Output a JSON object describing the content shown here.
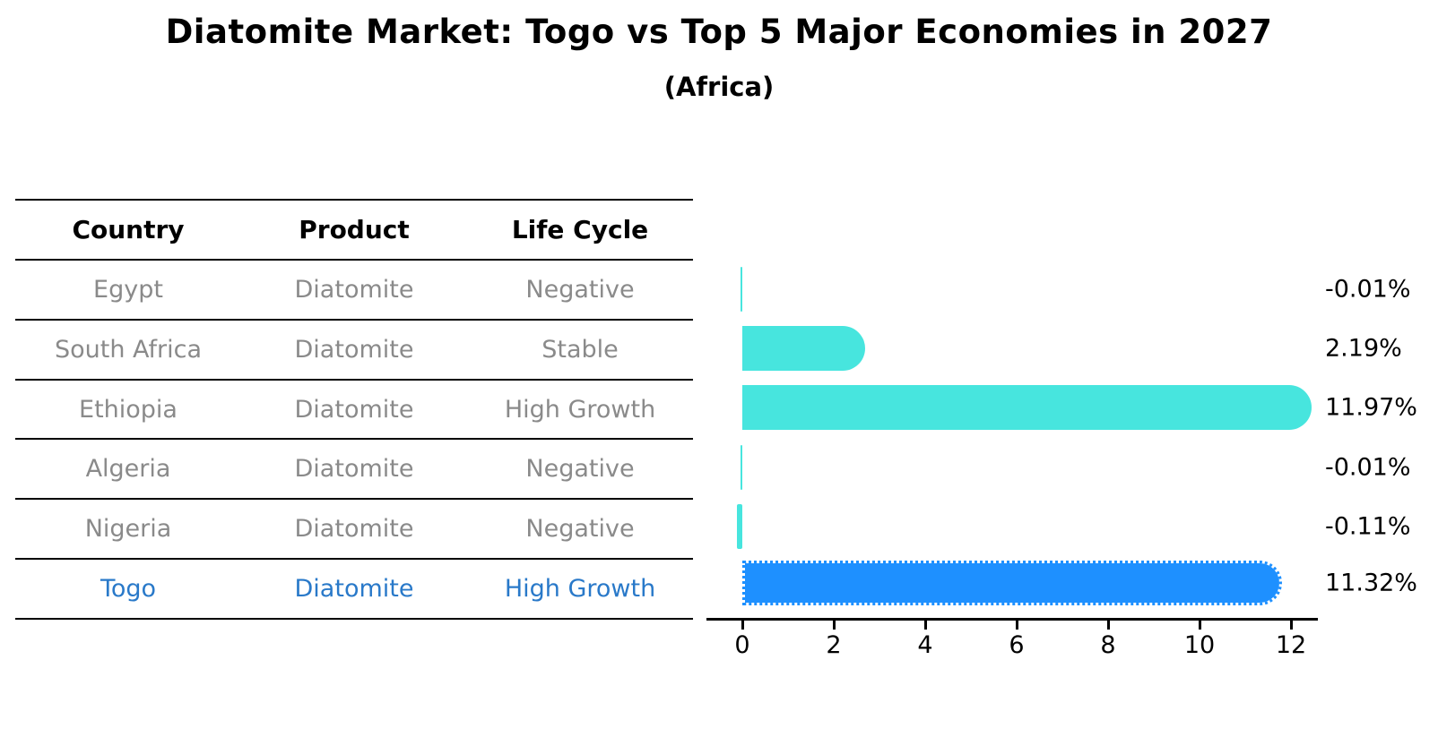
{
  "title": "Diatomite Market: Togo vs Top 5 Major Economies in 2027",
  "subtitle": "(Africa)",
  "table": {
    "headers": {
      "country": "Country",
      "product": "Product",
      "life_cycle": "Life Cycle"
    },
    "rows": [
      {
        "country": "Egypt",
        "product": "Diatomite",
        "life_cycle": "Negative"
      },
      {
        "country": "South Africa",
        "product": "Diatomite",
        "life_cycle": "Stable"
      },
      {
        "country": "Ethiopia",
        "product": "Diatomite",
        "life_cycle": "High Growth"
      },
      {
        "country": "Algeria",
        "product": "Diatomite",
        "life_cycle": "Negative"
      },
      {
        "country": "Nigeria",
        "product": "Diatomite",
        "life_cycle": "Negative"
      },
      {
        "country": "Togo",
        "product": "Diatomite",
        "life_cycle": "High Growth"
      }
    ],
    "highlight_row_index": 5
  },
  "chart_data": {
    "type": "bar",
    "orientation": "horizontal",
    "categories": [
      "Egypt",
      "South Africa",
      "Ethiopia",
      "Algeria",
      "Nigeria",
      "Togo"
    ],
    "values": [
      -0.01,
      2.19,
      11.97,
      -0.01,
      -0.11,
      11.32
    ],
    "value_labels": [
      "-0.01%",
      "2.19%",
      "11.97%",
      "-0.01%",
      "-0.11%",
      "11.32%"
    ],
    "unit": "%",
    "x_ticks": [
      "0",
      "2",
      "4",
      "6",
      "8",
      "10",
      "12"
    ],
    "xlim": [
      -0.8,
      12.6
    ],
    "grid": false,
    "legend": false,
    "highlight_index": 5,
    "colors": {
      "default_bar": "#47E5DE",
      "highlight_bar": "#1E90FF",
      "highlight_text": "#2979C9",
      "row_text": "#8A8A8A",
      "header_text": "#000000",
      "axis_text": "#000000"
    }
  }
}
